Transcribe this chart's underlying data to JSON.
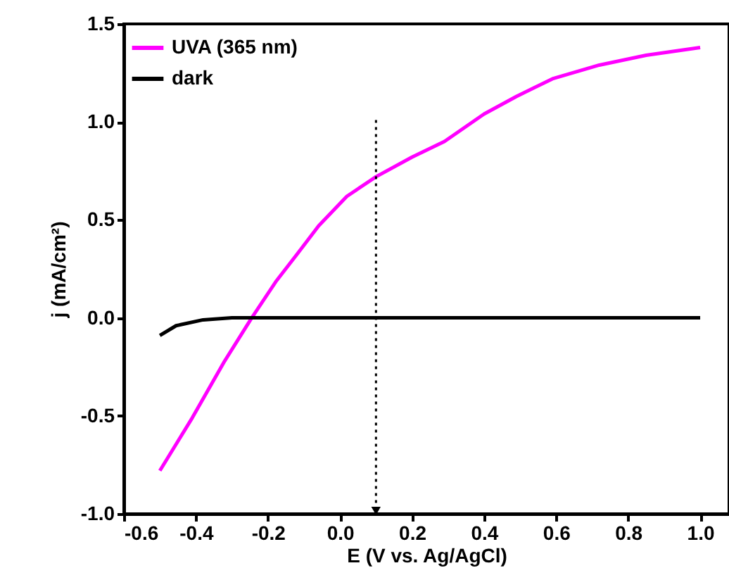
{
  "chart_data": {
    "type": "line",
    "xlabel": "E (V vs. Ag/AgCl)",
    "ylabel": "j (mA/cm²)",
    "xlim": [
      -0.6,
      1.08
    ],
    "ylim": [
      -1.0,
      1.5
    ],
    "xticks": [
      {
        "value": -0.6,
        "label": "-0.6"
      },
      {
        "value": -0.4,
        "label": "-0.4"
      },
      {
        "value": -0.2,
        "label": "-0.2"
      },
      {
        "value": 0,
        "label": "0.0"
      },
      {
        "value": 0.2,
        "label": "0.2"
      },
      {
        "value": 0.4,
        "label": "0.4"
      },
      {
        "value": 0.6,
        "label": "0.6"
      },
      {
        "value": 0.8,
        "label": "0.8"
      },
      {
        "value": 1,
        "label": "1.0"
      }
    ],
    "yticks": [
      {
        "value": -1,
        "label": "-1.0"
      },
      {
        "value": -0.5,
        "label": "-0.5"
      },
      {
        "value": 0,
        "label": "0.0"
      },
      {
        "value": 0.5,
        "label": "0.5"
      },
      {
        "value": 1,
        "label": "1.0"
      },
      {
        "value": 1.5,
        "label": "1.5"
      }
    ],
    "grid": false,
    "legend": "top left",
    "marker": "none",
    "series": [
      {
        "name": "UVA (365 nm)",
        "color": "#ff00ff",
        "x": [
          -0.5,
          -0.41,
          -0.32,
          -0.245,
          -0.176,
          -0.117,
          -0.059,
          0.019,
          0.1,
          0.2,
          0.29,
          0.4,
          0.49,
          0.59,
          0.72,
          0.85,
          1.0
        ],
        "values": [
          -0.78,
          -0.51,
          -0.22,
          0.0,
          0.19,
          0.33,
          0.47,
          0.62,
          0.72,
          0.82,
          0.9,
          1.04,
          1.13,
          1.22,
          1.29,
          1.34,
          1.38
        ]
      },
      {
        "name": "dark",
        "color": "#000000",
        "x": [
          -0.5,
          -0.455,
          -0.38,
          -0.3,
          0.0,
          0.5,
          1.0
        ],
        "values": [
          -0.09,
          -0.04,
          -0.01,
          0.0,
          0.0,
          0.0,
          0.0
        ]
      }
    ]
  }
}
